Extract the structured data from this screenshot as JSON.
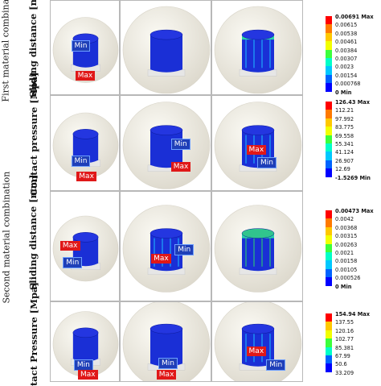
{
  "group_labels": [
    "First material combination",
    "Second material combination"
  ],
  "row_labels": [
    "Sliding distance [mm]",
    "Contact pressure [Mpa]",
    "Sliding distance [mm]",
    "tact Pressure [Mpa]"
  ],
  "marker_labels": {
    "min": "Min",
    "max": "Max"
  },
  "legends": [
    {
      "values": [
        "0.00691 Max",
        "0.00615",
        "0.00538",
        "0.00461",
        "0.00384",
        "0.00307",
        "0.0023",
        "0.00154",
        "0.000768",
        "0 Min"
      ]
    },
    {
      "values": [
        "126.43 Max",
        "112.21",
        "97.992",
        "83.775",
        "69.558",
        "55.341",
        "41.124",
        "26.907",
        "12.69",
        "-1.5269 Min"
      ]
    },
    {
      "values": [
        "0.00473 Max",
        "0.0042",
        "0.00368",
        "0.00315",
        "0.00263",
        "0.0021",
        "0.00158",
        "0.00105",
        "0.000526",
        "0 Min"
      ]
    },
    {
      "values": [
        "154.94 Max",
        "137.55",
        "120.16",
        "102.77",
        "85.381",
        "67.99",
        "50.6",
        "33.209"
      ]
    }
  ],
  "colors": {
    "scale": [
      "#ff0000",
      "#ff7a00",
      "#ffc800",
      "#f2ff00",
      "#a8ff00",
      "#3cff3c",
      "#00ffc8",
      "#00c8ff",
      "#0064ff",
      "#0000ff"
    ],
    "sphere": "#efece3",
    "min_tag": "#1f3fb8",
    "max_tag": "#e01818"
  }
}
